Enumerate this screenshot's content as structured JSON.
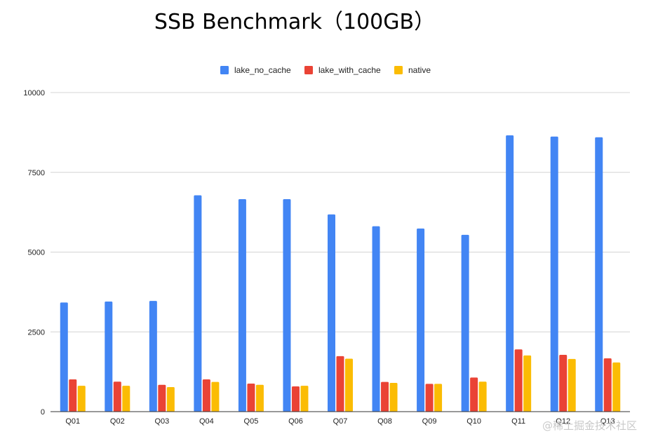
{
  "chart_data": {
    "type": "bar",
    "title": "SSB Benchmark（100GB）",
    "xlabel": "",
    "ylabel": "",
    "categories": [
      "Q01",
      "Q02",
      "Q03",
      "Q04",
      "Q05",
      "Q06",
      "Q07",
      "Q08",
      "Q09",
      "Q10",
      "Q11",
      "Q12",
      "Q13"
    ],
    "ylim": [
      0,
      10000
    ],
    "yticks": [
      0,
      2500,
      5000,
      7500,
      10000
    ],
    "grid": true,
    "legend_position": "top",
    "series": [
      {
        "name": "lake_no_cache",
        "color": "#4285f4",
        "values": [
          3420,
          3450,
          3470,
          6780,
          6660,
          6660,
          6180,
          5810,
          5740,
          5540,
          8660,
          8620,
          8600
        ]
      },
      {
        "name": "lake_with_cache",
        "color": "#ea4335",
        "values": [
          1010,
          940,
          840,
          1010,
          880,
          790,
          1740,
          930,
          870,
          1070,
          1950,
          1780,
          1670
        ]
      },
      {
        "name": "native",
        "color": "#fbbc04",
        "values": [
          810,
          810,
          770,
          930,
          840,
          810,
          1660,
          900,
          870,
          940,
          1760,
          1650,
          1540
        ]
      }
    ]
  },
  "watermark": "@稀土掘金技术社区"
}
